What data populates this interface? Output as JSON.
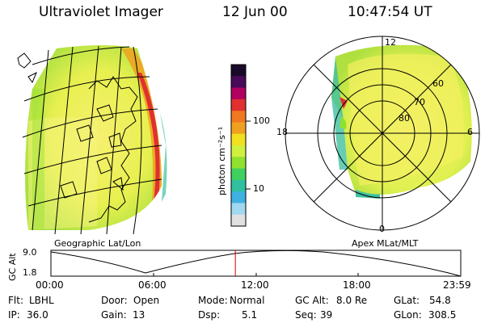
{
  "header": {
    "instrument": "Ultraviolet Imager",
    "date": "12 Jun 00",
    "time": "10:47:54 UT"
  },
  "colorbar": {
    "label": "photon cm⁻²s⁻¹",
    "ticks": [
      "100",
      "10"
    ],
    "colors": [
      "#1a0a2a",
      "#4a0a5a",
      "#b00060",
      "#e03030",
      "#f07820",
      "#f0a020",
      "#f0e020",
      "#d0f040",
      "#90e030",
      "#40d060",
      "#30c0a0",
      "#40b0e0",
      "#a0d8f0",
      "#e0e0e0"
    ]
  },
  "maps": {
    "left_label": "Geographic Lat/Lon",
    "right_label": "Apex MLat/MLT",
    "polar": {
      "lat_labels": [
        "60",
        "70",
        "80"
      ],
      "mlt_labels": {
        "top": "12",
        "left": "18",
        "right": "6",
        "bottom": "0"
      }
    }
  },
  "altitude_plot": {
    "ylabel": "GC Alt",
    "yticks": [
      "9.0",
      "1.8"
    ],
    "xticks": [
      "00:00",
      "06:00",
      "12:00",
      "18:00",
      "23:59"
    ],
    "marker_time_hours": 10.8
  },
  "info": {
    "filter_label": "Flt:",
    "filter": "LBHL",
    "ip_label": "IP:",
    "ip": "36.0",
    "door_label": "Door:",
    "door": "Open",
    "gain_label": "Gain:",
    "gain": "13",
    "mode_label": "Mode:",
    "mode": "Normal",
    "dsp_label": "Dsp:",
    "dsp": "5.1",
    "gcalt_label": "GC Alt:",
    "gcalt": "8.0 Re",
    "seq_label": "Seq:",
    "seq": "39",
    "glat_label": "GLat:",
    "glat": "54.8",
    "glon_label": "GLon:",
    "glon": "308.5"
  }
}
